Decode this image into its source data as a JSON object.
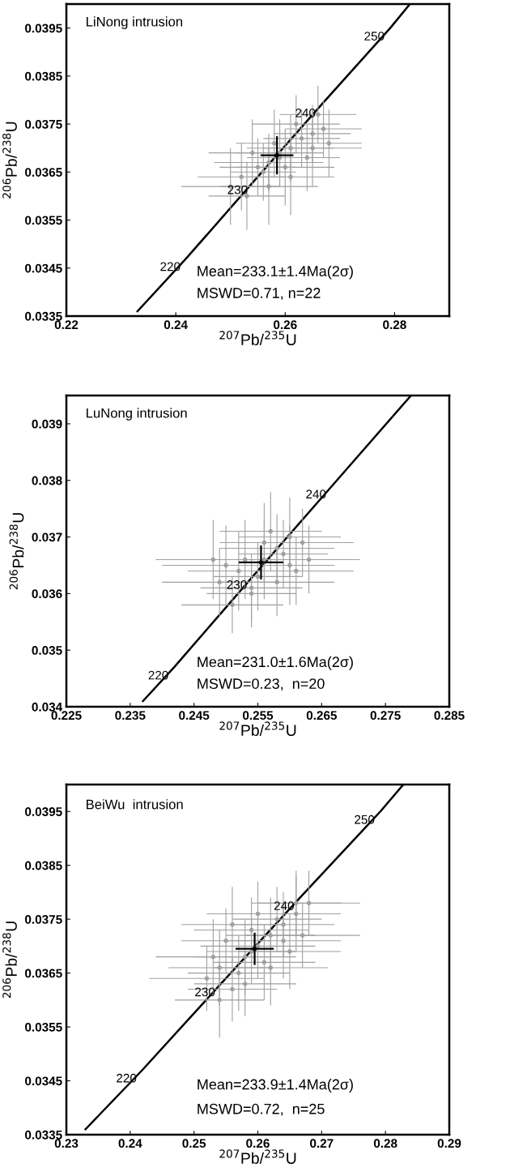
{
  "chart_data": [
    {
      "type": "scatter",
      "xlabel": "$^{207}$Pb/$^{235}$U",
      "ylabel": "$^{206}$Pb/$^{238}$U",
      "xlim": [
        0.22,
        0.29
      ],
      "xticks": [
        0.22,
        0.24,
        0.26,
        0.28
      ],
      "ylim": [
        0.0335,
        0.04
      ],
      "yticks": [
        0.0335,
        0.0345,
        0.0355,
        0.0365,
        0.0375,
        0.0385,
        0.0395
      ],
      "grid": false,
      "legend": false,
      "annotations": [
        "LiNong intrusion",
        "Mean=233.1±1.4Ma(2σ)",
        "MSWD=0.71, n=22",
        {
          "text": "220",
          "x": 0.2419,
          "y": 0.0347
        },
        {
          "text": "230",
          "x": 0.2542,
          "y": 0.0363
        },
        {
          "text": "240",
          "x": 0.2666,
          "y": 0.0379
        },
        {
          "text": "250",
          "x": 0.2792,
          "y": 0.0395
        }
      ],
      "series": [
        {
          "type": "line",
          "color": "#000000",
          "x": [
            0.233,
            0.2419,
            0.2542,
            0.2666,
            0.2792,
            0.2828
          ],
          "values": [
            0.0336,
            0.0347,
            0.0363,
            0.0379,
            0.0395,
            0.04
          ]
        },
        {
          "color": "#a0a0a0",
          "marker": "circle",
          "x": [
            0.252,
            0.255,
            0.257,
            0.259,
            0.261,
            0.263,
            0.265,
            0.267,
            0.254,
            0.256,
            0.258,
            0.26,
            0.262,
            0.264,
            0.266,
            0.25,
            0.253,
            0.257,
            0.261,
            0.265,
            0.268,
            0.259
          ],
          "values": [
            0.0364,
            0.0366,
            0.0362,
            0.0368,
            0.037,
            0.0372,
            0.037,
            0.0374,
            0.0369,
            0.0365,
            0.0371,
            0.0366,
            0.0375,
            0.0368,
            0.0377,
            0.0362,
            0.036,
            0.0367,
            0.0364,
            0.0373,
            0.0371,
            0.0369
          ],
          "xerrors": [
            0.008,
            0.007,
            0.009,
            0.006,
            0.008,
            0.007,
            0.009,
            0.007,
            0.008,
            0.006,
            0.007,
            0.009,
            0.008,
            0.006,
            0.007,
            0.009,
            0.007,
            0.01,
            0.008,
            0.007,
            0.006,
            0.008
          ],
          "errors": [
            0.0007,
            0.0006,
            0.0008,
            0.0006,
            0.0007,
            0.0006,
            0.0008,
            0.0006,
            0.0007,
            0.0006,
            0.0007,
            0.0008,
            0.0006,
            0.0007,
            0.0006,
            0.0008,
            0.0007,
            0.0006,
            0.0008,
            0.0006,
            0.0007,
            0.0007
          ]
        },
        {
          "color": "#000000",
          "marker": "circle",
          "x": [
            0.2585
          ],
          "values": [
            0.03685
          ],
          "xerrors": [
            0.003
          ],
          "errors": [
            0.0004
          ]
        }
      ]
    },
    {
      "type": "scatter",
      "xlabel": "$^{207}$Pb/$^{235}$U",
      "ylabel": "$^{206}$Pb/$^{238}$U",
      "xlim": [
        0.225,
        0.285
      ],
      "xticks": [
        0.225,
        0.235,
        0.245,
        0.255,
        0.265,
        0.275,
        0.285
      ],
      "ylim": [
        0.034,
        0.0395
      ],
      "yticks": [
        0.034,
        0.035,
        0.036,
        0.037,
        0.038,
        0.039
      ],
      "grid": false,
      "legend": false,
      "annotations": [
        "LuNong intrusion",
        "Mean=231.0±1.6Ma(2σ)",
        "MSWD=0.23,  n=20",
        {
          "text": "220",
          "x": 0.2419,
          "y": 0.0347
        },
        {
          "text": "230",
          "x": 0.2542,
          "y": 0.0363
        },
        {
          "text": "240",
          "x": 0.2666,
          "y": 0.0379
        }
      ],
      "series": [
        {
          "type": "line",
          "color": "#000000",
          "x": [
            0.237,
            0.2419,
            0.2542,
            0.2666,
            0.279
          ],
          "values": [
            0.0341,
            0.0347,
            0.0363,
            0.0379,
            0.0395
          ]
        },
        {
          "color": "#a0a0a0",
          "marker": "circle",
          "x": [
            0.249,
            0.252,
            0.254,
            0.256,
            0.258,
            0.26,
            0.262,
            0.251,
            0.253,
            0.255,
            0.257,
            0.259,
            0.261,
            0.25,
            0.254,
            0.256,
            0.258,
            0.26,
            0.248,
            0.263
          ],
          "values": [
            0.0362,
            0.0364,
            0.036,
            0.0366,
            0.0368,
            0.0365,
            0.0369,
            0.0358,
            0.0366,
            0.0363,
            0.0371,
            0.0367,
            0.0364,
            0.0365,
            0.0361,
            0.0369,
            0.0362,
            0.037,
            0.0366,
            0.0366
          ],
          "xerrors": [
            0.009,
            0.008,
            0.007,
            0.008,
            0.009,
            0.007,
            0.008,
            0.008,
            0.009,
            0.007,
            0.008,
            0.007,
            0.009,
            0.01,
            0.008,
            0.007,
            0.009,
            0.008,
            0.009,
            0.008
          ],
          "errors": [
            0.0006,
            0.0007,
            0.0006,
            0.0007,
            0.0006,
            0.0007,
            0.0006,
            0.0005,
            0.0007,
            0.0006,
            0.0007,
            0.0006,
            0.0006,
            0.0007,
            0.0006,
            0.0007,
            0.0006,
            0.0007,
            0.0007,
            0.0006
          ]
        },
        {
          "color": "#000000",
          "marker": "circle",
          "x": [
            0.2555
          ],
          "values": [
            0.03655
          ],
          "xerrors": [
            0.0035
          ],
          "errors": [
            0.0003
          ]
        }
      ]
    },
    {
      "type": "scatter",
      "xlabel": "$^{207}$Pb/$^{235}$U",
      "ylabel": "$^{206}$Pb/$^{238}$U",
      "xlim": [
        0.23,
        0.29
      ],
      "xticks": [
        0.23,
        0.24,
        0.25,
        0.26,
        0.27,
        0.28,
        0.29
      ],
      "ylim": [
        0.0335,
        0.04
      ],
      "yticks": [
        0.0335,
        0.0345,
        0.0355,
        0.0365,
        0.0375,
        0.0385,
        0.0395
      ],
      "grid": false,
      "legend": false,
      "annotations": [
        "BeiWu  intrusion",
        "Mean=233.9±1.4Ma(2σ)",
        "MSWD=0.72,  n=25",
        {
          "text": "220",
          "x": 0.2419,
          "y": 0.0347
        },
        {
          "text": "230",
          "x": 0.2542,
          "y": 0.0363
        },
        {
          "text": "240",
          "x": 0.2666,
          "y": 0.0379
        },
        {
          "text": "250",
          "x": 0.2792,
          "y": 0.0395
        }
      ],
      "series": [
        {
          "type": "line",
          "color": "#000000",
          "x": [
            0.233,
            0.2419,
            0.2542,
            0.2666,
            0.2792,
            0.2828
          ],
          "values": [
            0.0336,
            0.0347,
            0.0363,
            0.0379,
            0.0395,
            0.04
          ]
        },
        {
          "color": "#a0a0a0",
          "marker": "circle",
          "x": [
            0.252,
            0.254,
            0.256,
            0.258,
            0.26,
            0.262,
            0.264,
            0.266,
            0.268,
            0.253,
            0.255,
            0.257,
            0.259,
            0.261,
            0.263,
            0.265,
            0.267,
            0.254,
            0.258,
            0.262,
            0.266,
            0.256,
            0.26,
            0.264,
            0.259
          ],
          "values": [
            0.0364,
            0.0366,
            0.0362,
            0.0368,
            0.037,
            0.0372,
            0.0374,
            0.0376,
            0.0378,
            0.0368,
            0.0371,
            0.0365,
            0.0373,
            0.0367,
            0.0375,
            0.0369,
            0.0372,
            0.036,
            0.0363,
            0.0366,
            0.0378,
            0.0374,
            0.0376,
            0.0371,
            0.0369
          ],
          "xerrors": [
            0.009,
            0.008,
            0.007,
            0.008,
            0.009,
            0.007,
            0.008,
            0.007,
            0.008,
            0.009,
            0.007,
            0.008,
            0.009,
            0.008,
            0.007,
            0.008,
            0.009,
            0.007,
            0.008,
            0.009,
            0.007,
            0.008,
            0.008,
            0.009,
            0.007
          ],
          "errors": [
            0.0006,
            0.0007,
            0.0006,
            0.0007,
            0.0006,
            0.0007,
            0.0006,
            0.0007,
            0.0006,
            0.0007,
            0.0006,
            0.0007,
            0.0006,
            0.0007,
            0.0006,
            0.0007,
            0.0006,
            0.0007,
            0.0006,
            0.0007,
            0.0006,
            0.0007,
            0.0006,
            0.0007,
            0.0006
          ]
        },
        {
          "color": "#000000",
          "marker": "circle",
          "x": [
            0.2595
          ],
          "values": [
            0.03695
          ],
          "xerrors": [
            0.003
          ],
          "errors": [
            0.0003
          ]
        }
      ]
    }
  ]
}
